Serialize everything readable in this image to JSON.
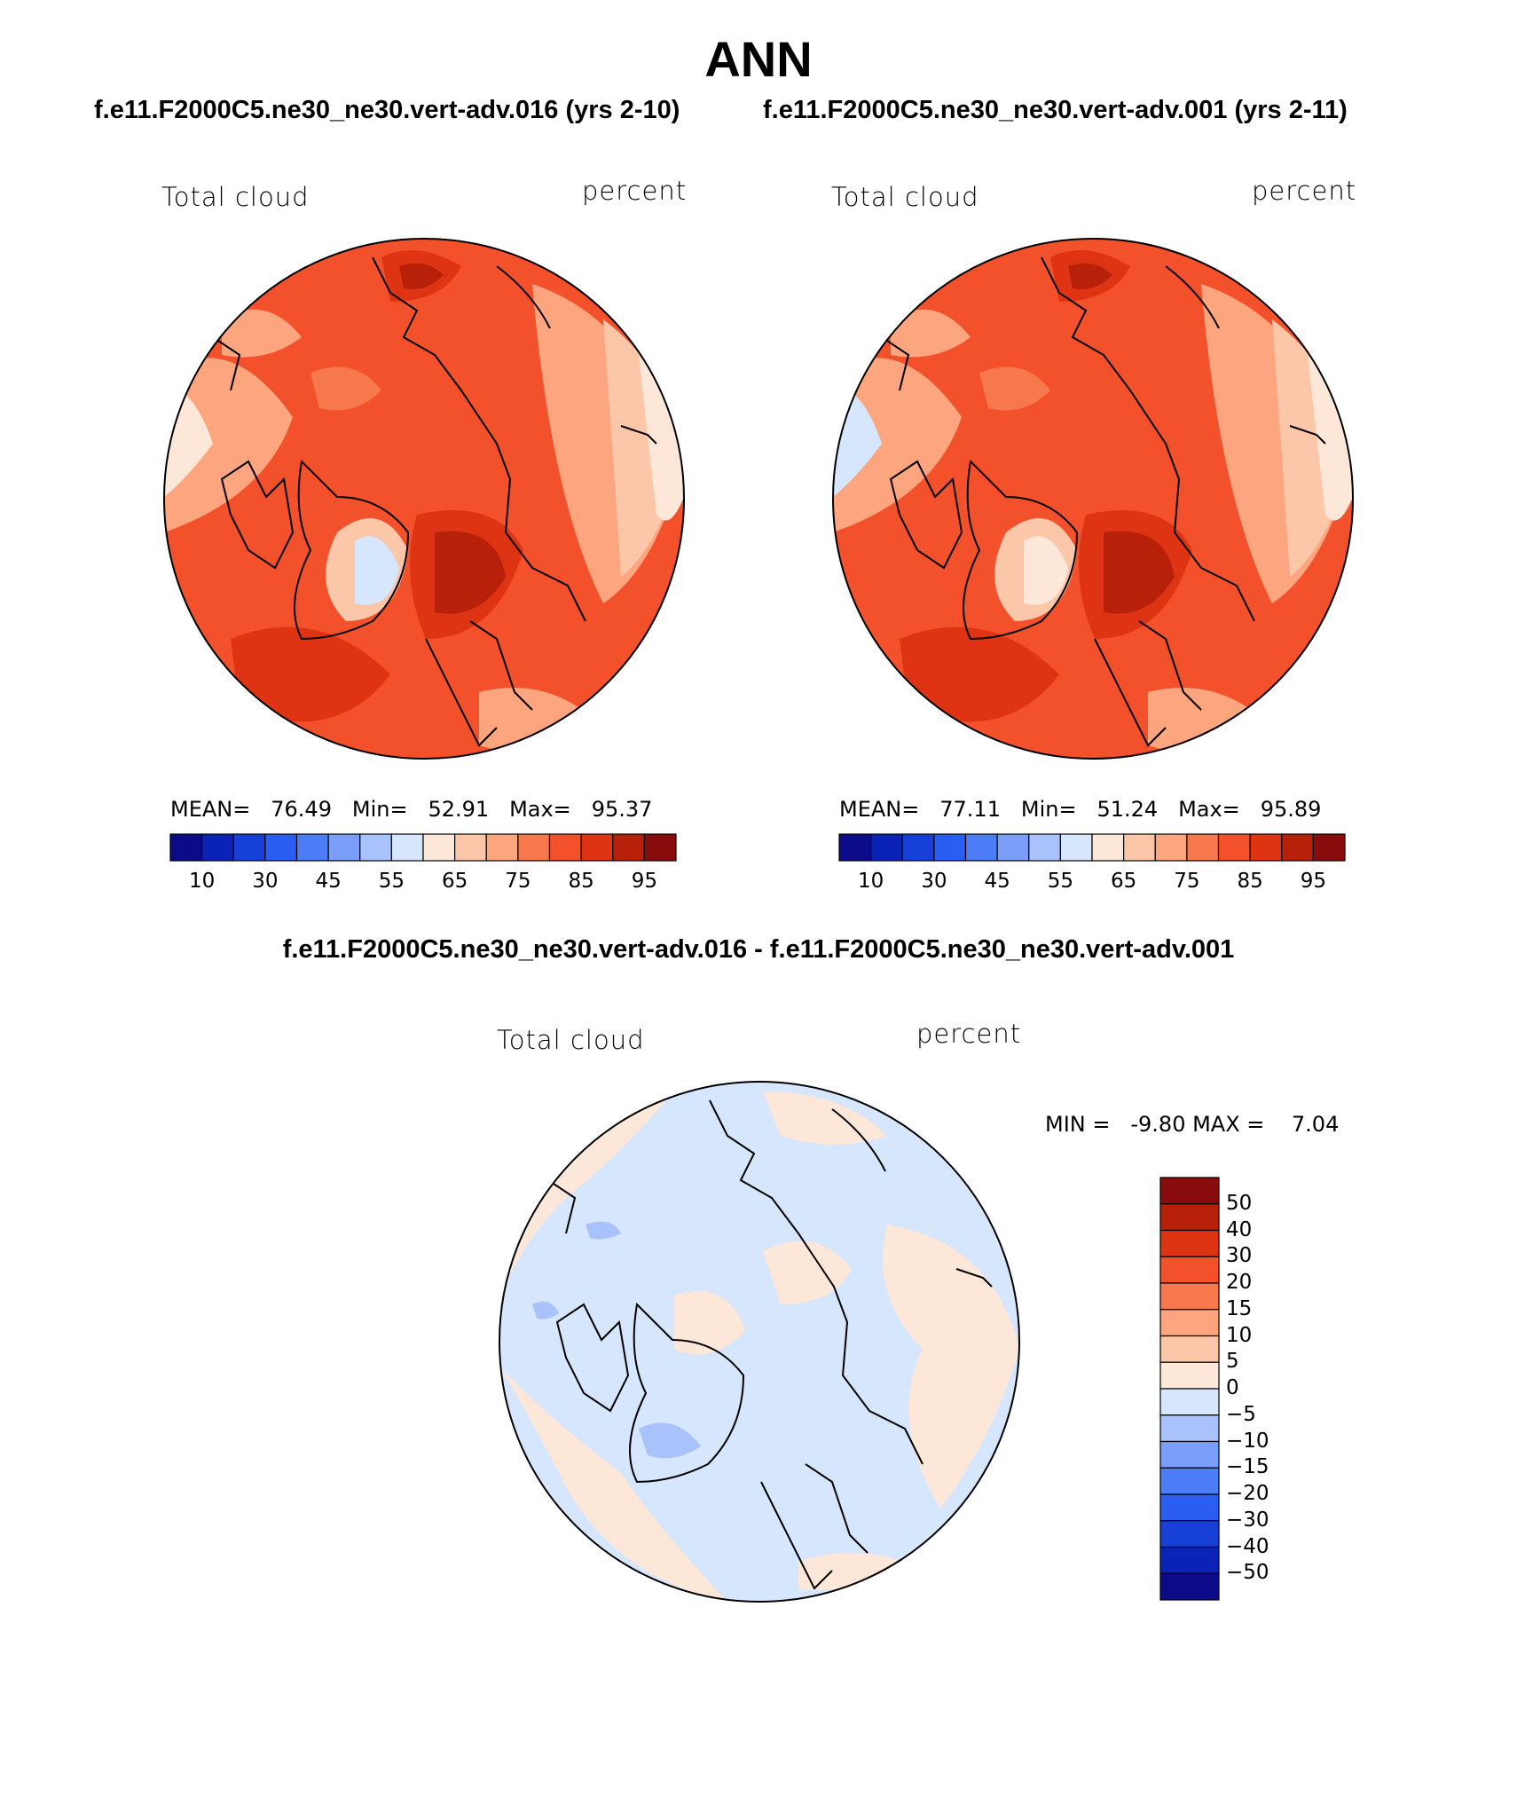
{
  "title": "ANN",
  "panels": [
    {
      "case_title": "f.e11.F2000C5.ne30_ne30.vert-adv.016 (yrs 2-10)",
      "variable_label": "Total cloud",
      "units_label": "percent",
      "stats": {
        "mean_label": "MEAN=",
        "mean": "76.49",
        "min_label": "Min=",
        "min": "52.91",
        "max_label": "Max=",
        "max": "95.37"
      }
    },
    {
      "case_title": "f.e11.F2000C5.ne30_ne30.vert-adv.001 (yrs 2-11)",
      "variable_label": "Total cloud",
      "units_label": "percent",
      "stats": {
        "mean_label": "MEAN=",
        "mean": "77.11",
        "min_label": "Min=",
        "min": "51.24",
        "max_label": "Max=",
        "max": "95.89"
      }
    }
  ],
  "abs_colorbar": {
    "colors": [
      "#0b0b8a",
      "#0a23b6",
      "#1640d8",
      "#2a5ef2",
      "#4d7cf7",
      "#7a9ef9",
      "#a9c2fb",
      "#d6e6fd",
      "#fde7d8",
      "#fcc6a8",
      "#fca57e",
      "#f8784e",
      "#f3502c",
      "#df3414",
      "#b82109",
      "#8a0b0b"
    ],
    "tick_labels": [
      "10",
      "30",
      "45",
      "55",
      "65",
      "75",
      "85",
      "95"
    ]
  },
  "diff": {
    "title": "f.e11.F2000C5.ne30_ne30.vert-adv.016 - f.e11.F2000C5.ne30_ne30.vert-adv.001",
    "variable_label": "Total cloud",
    "units_label": "percent",
    "minmax": "MIN =   -9.80 MAX =    7.04",
    "colorbar": {
      "colors_top_to_bottom": [
        "#8a0b0b",
        "#b82109",
        "#df3414",
        "#f3502c",
        "#f8784e",
        "#fca57e",
        "#fcc6a8",
        "#fde7d8",
        "#d6e6fd",
        "#a9c2fb",
        "#7a9ef9",
        "#4d7cf7",
        "#2a5ef2",
        "#1640d8",
        "#0a23b6",
        "#0b0b8a"
      ],
      "tick_labels": [
        "50",
        "40",
        "30",
        "20",
        "15",
        "10",
        "5",
        "0",
        "−5",
        "−10",
        "−15",
        "−20",
        "−30",
        "−40",
        "−50"
      ]
    }
  }
}
